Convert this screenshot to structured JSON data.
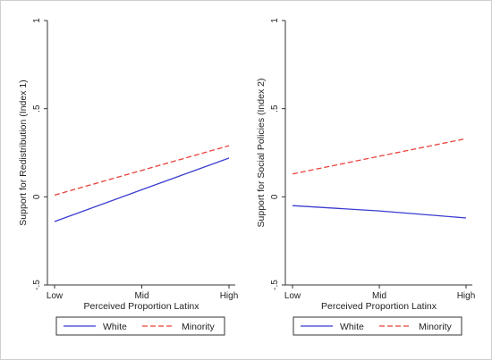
{
  "chart_data": [
    {
      "type": "line",
      "title": "",
      "xlabel": "Perceived Proportion Latinx",
      "ylabel": "Support for Redistribution (Index 1)",
      "categories": [
        "Low",
        "Mid",
        "High"
      ],
      "ylim": [
        -0.5,
        1
      ],
      "yticks": [
        -0.5,
        0,
        0.5,
        1
      ],
      "ytick_labels": [
        "-.5",
        "0",
        ".5",
        "1"
      ],
      "grid": false,
      "legend_placement": "bottom",
      "series": [
        {
          "name": "White",
          "values": [
            -0.14,
            0.04,
            0.22
          ],
          "color": "#3b3bd1",
          "dash": "solid"
        },
        {
          "name": "Minority",
          "values": [
            0.01,
            0.15,
            0.29
          ],
          "color": "#e8413a",
          "dash": "dashed"
        }
      ]
    },
    {
      "type": "line",
      "title": "",
      "xlabel": "Perceived Proportion Latinx",
      "ylabel": "Support for Social Policies (Index 2)",
      "categories": [
        "Low",
        "Mid",
        "High"
      ],
      "ylim": [
        -0.5,
        1
      ],
      "yticks": [
        -0.5,
        0,
        0.5,
        1
      ],
      "ytick_labels": [
        "-.5",
        "0",
        ".5",
        "1"
      ],
      "grid": false,
      "legend_placement": "bottom",
      "series": [
        {
          "name": "White",
          "values": [
            -0.05,
            -0.08,
            -0.12
          ],
          "color": "#3b3bd1",
          "dash": "solid"
        },
        {
          "name": "Minority",
          "values": [
            0.13,
            0.23,
            0.33
          ],
          "color": "#e8413a",
          "dash": "dashed"
        }
      ]
    }
  ]
}
